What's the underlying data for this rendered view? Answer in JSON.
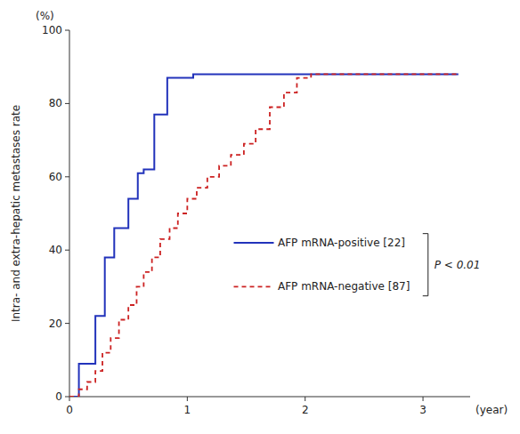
{
  "chart_data": {
    "type": "line",
    "y_label": "Intra- and extra-hepatic metastases rate",
    "y_unit_label": "(%)",
    "x_unit_label": "(year)",
    "annotation": "P < 0.01",
    "xlim": [
      0,
      3.4
    ],
    "ylim": [
      0,
      100
    ],
    "xticks": [
      0,
      1,
      2,
      3
    ],
    "yticks": [
      0,
      20,
      40,
      60,
      80,
      100
    ],
    "series": [
      {
        "name": "AFP mRNA-positive [22]",
        "color": "#2233bb",
        "line_style": "solid",
        "x": [
          0,
          0.08,
          0.08,
          0.22,
          0.22,
          0.3,
          0.3,
          0.38,
          0.38,
          0.5,
          0.5,
          0.58,
          0.58,
          0.63,
          0.63,
          0.72,
          0.72,
          0.83,
          0.83,
          1.05,
          1.05,
          1.1,
          1.1,
          1.5,
          1.5,
          3.3
        ],
        "values": [
          0,
          0,
          9,
          9,
          22,
          22,
          38,
          38,
          46,
          46,
          54,
          54,
          61,
          61,
          62,
          62,
          77,
          77,
          87,
          87,
          88,
          88,
          88,
          88,
          88,
          88
        ]
      },
      {
        "name": "AFP mRNA-negative [87]",
        "color": "#cc2222",
        "line_style": "dashed",
        "x": [
          0,
          0.08,
          0.08,
          0.15,
          0.15,
          0.22,
          0.22,
          0.28,
          0.28,
          0.35,
          0.35,
          0.42,
          0.42,
          0.5,
          0.5,
          0.57,
          0.57,
          0.63,
          0.63,
          0.7,
          0.7,
          0.77,
          0.77,
          0.85,
          0.85,
          0.92,
          0.92,
          1.0,
          1.0,
          1.08,
          1.08,
          1.17,
          1.17,
          1.27,
          1.27,
          1.37,
          1.37,
          1.48,
          1.48,
          1.58,
          1.58,
          1.7,
          1.7,
          1.82,
          1.82,
          1.93,
          1.93,
          2.05,
          2.05,
          2.17,
          2.17,
          2.25,
          2.25,
          3.3
        ],
        "values": [
          0,
          0,
          2,
          2,
          4,
          4,
          7,
          7,
          12,
          12,
          16,
          16,
          21,
          21,
          25,
          25,
          30,
          30,
          34,
          34,
          38,
          38,
          43,
          43,
          46,
          46,
          50,
          50,
          54,
          54,
          57,
          57,
          60,
          60,
          63,
          63,
          66,
          66,
          69,
          69,
          73,
          73,
          79,
          79,
          83,
          83,
          87,
          87,
          88,
          88,
          88,
          88,
          88,
          88
        ]
      }
    ]
  }
}
